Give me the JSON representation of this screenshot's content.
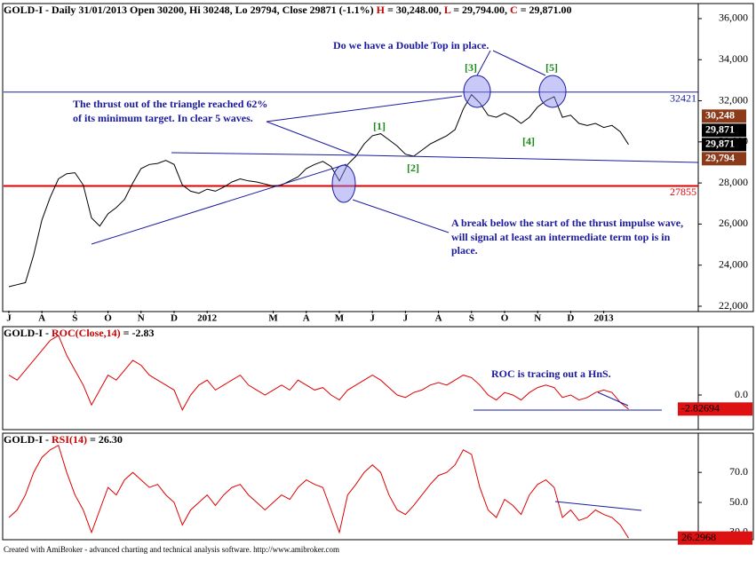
{
  "chart_data": [
    {
      "type": "line",
      "title_parts": [
        {
          "text": "GOLD-I - Daily 31/01/2013 Open 30200, Hi 30248, Lo 29794, Close 29871 (-1.1%) ",
          "color": "#000000"
        },
        {
          "text": "H",
          "color": "#cc0000"
        },
        {
          "text": " = 30,248.00, ",
          "color": "#000000"
        },
        {
          "text": "L",
          "color": "#cc0000"
        },
        {
          "text": " = 29,794.00, ",
          "color": "#000000"
        },
        {
          "text": "C",
          "color": "#cc0000"
        },
        {
          "text": " = 29,871.00",
          "color": "#000000"
        }
      ],
      "x": [
        0,
        0.25,
        0.5,
        0.75,
        1,
        1.25,
        1.5,
        1.75,
        2,
        2.25,
        2.5,
        2.75,
        3,
        3.25,
        3.5,
        3.75,
        4,
        4.25,
        4.5,
        4.75,
        5,
        5.25,
        5.5,
        5.75,
        6,
        6.25,
        6.5,
        6.75,
        7,
        7.25,
        7.5,
        7.75,
        8,
        8.25,
        8.5,
        8.75,
        9,
        9.25,
        9.5,
        9.75,
        10,
        10.25,
        10.5,
        10.75,
        11,
        11.25,
        11.5,
        11.75,
        12,
        12.25,
        12.5,
        12.75,
        13,
        13.25,
        13.5,
        13.75,
        14,
        14.25,
        14.5,
        14.75,
        15,
        15.25,
        15.5,
        15.75,
        16,
        16.25,
        16.5,
        16.75,
        17,
        17.25,
        17.5,
        17.75,
        18,
        18.25,
        18.5,
        18.75
      ],
      "series": [
        {
          "name": "GOLD-I",
          "color": "#000000",
          "values": [
            22950,
            23050,
            23150,
            24500,
            26200,
            27300,
            28200,
            28450,
            28500,
            27900,
            26300,
            25900,
            26500,
            26800,
            27200,
            28000,
            28700,
            28900,
            28950,
            29100,
            28900,
            27900,
            27600,
            27500,
            27700,
            27600,
            27800,
            28050,
            28200,
            28100,
            28050,
            27950,
            27850,
            27900,
            28100,
            28300,
            28700,
            28900,
            29050,
            28800,
            28100,
            28900,
            29300,
            29900,
            30300,
            30400,
            30100,
            29800,
            29400,
            29300,
            29600,
            29900,
            30100,
            30300,
            30600,
            31600,
            32300,
            31900,
            31300,
            31200,
            31400,
            31200,
            30900,
            31200,
            31700,
            32000,
            32200,
            31200,
            31300,
            30900,
            30800,
            30900,
            30700,
            30800,
            30500,
            29871
          ]
        }
      ],
      "xlim": [
        -0.16,
        20.86
      ],
      "xticks": [
        {
          "value": 0,
          "label": "J"
        },
        {
          "value": 1,
          "label": "A"
        },
        {
          "value": 2,
          "label": "S"
        },
        {
          "value": 3,
          "label": "O"
        },
        {
          "value": 4,
          "label": "N"
        },
        {
          "value": 5,
          "label": "D"
        },
        {
          "value": 6,
          "label": "2012"
        },
        {
          "value": 8,
          "label": "M"
        },
        {
          "value": 9,
          "label": "A"
        },
        {
          "value": 10,
          "label": "M"
        },
        {
          "value": 11,
          "label": "J"
        },
        {
          "value": 12,
          "label": "J"
        },
        {
          "value": 13,
          "label": "A"
        },
        {
          "value": 14,
          "label": "S"
        },
        {
          "value": 15,
          "label": "O"
        },
        {
          "value": 16,
          "label": "N"
        },
        {
          "value": 17,
          "label": "D"
        },
        {
          "value": 18,
          "label": "2013"
        }
      ],
      "ylim": [
        21784,
        36690
      ],
      "yticks": [
        {
          "value": 22000,
          "label": "22,000"
        },
        {
          "value": 24000,
          "label": "24,000"
        },
        {
          "value": 26000,
          "label": "26,000"
        },
        {
          "value": 28000,
          "label": "28,000"
        },
        {
          "value": 30000,
          "label": "30,000"
        },
        {
          "value": 32000,
          "label": "32,000"
        },
        {
          "value": 34000,
          "label": "34,000"
        },
        {
          "value": 36000,
          "label": "36,000"
        }
      ],
      "levels": [
        {
          "value": 32421,
          "color": "#1a1aa0"
        },
        {
          "value": 27855,
          "color": "#dd0000"
        }
      ],
      "price_labels": [
        {
          "value": 30248,
          "label": "30,248",
          "color": "#8b3a1a"
        },
        {
          "value": 29871,
          "label": "29,871",
          "color": "#000000"
        },
        {
          "value": 29871,
          "label": "29,871",
          "color": "#000000"
        },
        {
          "value": 29794,
          "label": "29,794",
          "color": "#8b3a1a"
        }
      ],
      "annotations": [
        "Do we have a Double Top in place.",
        "The thrust out of the triangle reached 62%",
        "of its minimum target. In clear 5 waves.",
        "A break below the start of the thrust impulse wave,",
        "will signal at least an intermediate term top is in",
        "place."
      ],
      "waves": [
        "[1]",
        "[2]",
        "[3]",
        "[4]",
        "[5]"
      ]
    },
    {
      "type": "line",
      "title_parts": [
        {
          "text": "GOLD-I - ",
          "color": "#000000"
        },
        {
          "text": "ROC(Close,14)",
          "color": "#cc0000"
        },
        {
          "text": " = -2.83",
          "color": "#000000"
        }
      ],
      "x": [
        0,
        0.25,
        0.5,
        0.75,
        1,
        1.25,
        1.5,
        1.75,
        2,
        2.25,
        2.5,
        2.75,
        3,
        3.25,
        3.5,
        3.75,
        4,
        4.25,
        4.5,
        4.75,
        5,
        5.25,
        5.5,
        5.75,
        6,
        6.25,
        6.5,
        6.75,
        7,
        7.25,
        7.5,
        7.75,
        8,
        8.25,
        8.5,
        8.75,
        9,
        9.25,
        9.5,
        9.75,
        10,
        10.25,
        10.5,
        10.75,
        11,
        11.25,
        11.5,
        11.75,
        12,
        12.25,
        12.5,
        12.75,
        13,
        13.25,
        13.5,
        13.75,
        14,
        14.25,
        14.5,
        14.75,
        15,
        15.25,
        15.5,
        15.75,
        16,
        16.25,
        16.5,
        16.75,
        17,
        17.25,
        17.5,
        17.75,
        18,
        18.25,
        18.5,
        18.75
      ],
      "series": [
        {
          "name": "ROC(Close,14)",
          "color": "#dd0000",
          "values": [
            4,
            3,
            5,
            7,
            9,
            11,
            12,
            8,
            5,
            2,
            -2,
            1,
            4,
            3,
            5,
            7,
            6,
            4,
            3,
            2,
            1,
            -3,
            0,
            2,
            3,
            1,
            2,
            3,
            4,
            2,
            1,
            0,
            1,
            2,
            1,
            3,
            2,
            1,
            1.5,
            0,
            -1,
            1,
            2,
            3,
            4,
            3,
            1.5,
            0,
            -0.5,
            0.5,
            1,
            2,
            2.5,
            2,
            3,
            4,
            3.5,
            2,
            0,
            -1,
            0.5,
            0,
            -1,
            0.5,
            1.5,
            2,
            1.5,
            -0.5,
            0,
            -1,
            -0.5,
            0.5,
            1,
            0.5,
            -1.5,
            -2.82694
          ]
        }
      ],
      "xlim": [
        -0.16,
        20.86
      ],
      "ylim": [
        -6.8,
        13.6
      ],
      "yticks": [
        {
          "value": 0,
          "label": "0.0"
        }
      ],
      "last_label": {
        "value": -2.82694,
        "color": "#dd1111"
      },
      "annotations": [
        "ROC is tracing out a HnS."
      ]
    },
    {
      "type": "line",
      "title_parts": [
        {
          "text": "GOLD-I - ",
          "color": "#000000"
        },
        {
          "text": "RSI(14)",
          "color": "#cc0000"
        },
        {
          "text": " = 26.30",
          "color": "#000000"
        }
      ],
      "x": [
        0,
        0.25,
        0.5,
        0.75,
        1,
        1.25,
        1.5,
        1.75,
        2,
        2.25,
        2.5,
        2.75,
        3,
        3.25,
        3.5,
        3.75,
        4,
        4.25,
        4.5,
        4.75,
        5,
        5.25,
        5.5,
        5.75,
        6,
        6.25,
        6.5,
        6.75,
        7,
        7.25,
        7.5,
        7.75,
        8,
        8.25,
        8.5,
        8.75,
        9,
        9.25,
        9.5,
        9.75,
        10,
        10.25,
        10.5,
        10.75,
        11,
        11.25,
        11.5,
        11.75,
        12,
        12.25,
        12.5,
        12.75,
        13,
        13.25,
        13.5,
        13.75,
        14,
        14.25,
        14.5,
        14.75,
        15,
        15.25,
        15.5,
        15.75,
        16,
        16.25,
        16.5,
        16.75,
        17,
        17.25,
        17.5,
        17.75,
        18,
        18.25,
        18.5,
        18.75
      ],
      "series": [
        {
          "name": "RSI(14)",
          "color": "#dd0000",
          "values": [
            40,
            45,
            55,
            70,
            80,
            85,
            88,
            70,
            55,
            45,
            30,
            45,
            60,
            55,
            65,
            70,
            65,
            60,
            62,
            55,
            50,
            35,
            45,
            50,
            55,
            48,
            55,
            60,
            62,
            55,
            50,
            45,
            50,
            55,
            52,
            60,
            65,
            62,
            60,
            45,
            30,
            55,
            62,
            70,
            75,
            70,
            55,
            45,
            42,
            48,
            55,
            62,
            68,
            70,
            75,
            85,
            82,
            60,
            45,
            40,
            52,
            48,
            42,
            55,
            62,
            65,
            60,
            40,
            45,
            38,
            40,
            45,
            42,
            40,
            35,
            26.2968
          ]
        }
      ],
      "xlim": [
        -0.16,
        20.86
      ],
      "ylim": [
        25.8,
        95.5
      ],
      "yticks": [
        {
          "value": 30,
          "label": "30.0"
        },
        {
          "value": 50,
          "label": "50.0"
        },
        {
          "value": 70,
          "label": "70.0"
        }
      ],
      "last_label": {
        "value": 26.2968,
        "color": "#dd1111"
      }
    }
  ],
  "footer": "Created with AmiBroker - advanced charting and technical analysis software. http://www.amibroker.com"
}
